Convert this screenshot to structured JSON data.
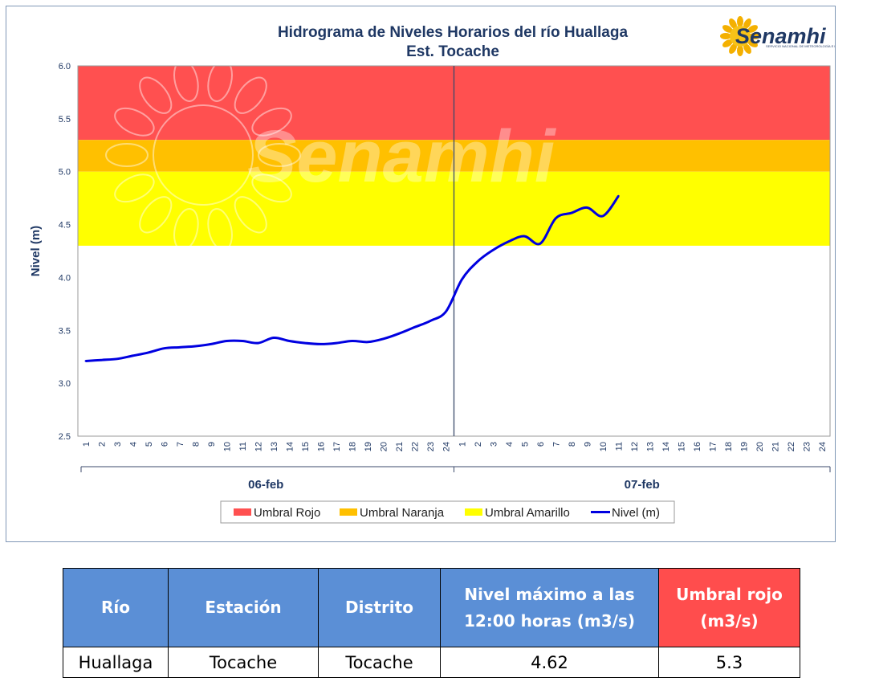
{
  "chart_data": {
    "type": "line",
    "title": "Hidrograma de Niveles Horarios del río Huallaga",
    "subtitle": "Est. Tocache",
    "ylabel": "Nivel (m)",
    "ylim": [
      2.5,
      6.0
    ],
    "yticks": [
      "2.5",
      "3.0",
      "3.5",
      "4.0",
      "4.5",
      "5.0",
      "5.5",
      "6.0"
    ],
    "x_tick_labels": [
      "1",
      "2",
      "3",
      "4",
      "5",
      "6",
      "7",
      "8",
      "9",
      "10",
      "11",
      "12",
      "13",
      "14",
      "15",
      "16",
      "17",
      "18",
      "19",
      "20",
      "21",
      "22",
      "23",
      "24",
      "1",
      "2",
      "3",
      "4",
      "5",
      "6",
      "7",
      "8",
      "9",
      "10",
      "11",
      "12",
      "13",
      "14",
      "15",
      "16",
      "17",
      "18",
      "19",
      "20",
      "21",
      "22",
      "23",
      "24"
    ],
    "day_labels": [
      "06-feb",
      "07-feb"
    ],
    "thresholds": [
      {
        "name": "Umbral Rojo",
        "from": 5.3,
        "to": 6.0,
        "color": "#ff5050"
      },
      {
        "name": "Umbral Naranja",
        "from": 5.0,
        "to": 5.3,
        "color": "#ffc000"
      },
      {
        "name": "Umbral Amarillo",
        "from": 4.3,
        "to": 5.0,
        "color": "#ffff00"
      }
    ],
    "series": [
      {
        "name": "Nivel (m)",
        "color": "#0000e0",
        "values": [
          3.21,
          3.22,
          3.23,
          3.26,
          3.29,
          3.33,
          3.34,
          3.35,
          3.37,
          3.4,
          3.4,
          3.38,
          3.43,
          3.4,
          3.38,
          3.37,
          3.38,
          3.4,
          3.39,
          3.42,
          3.47,
          3.53,
          3.59,
          3.68,
          3.98,
          4.15,
          4.26,
          4.34,
          4.39,
          4.32,
          4.56,
          4.61,
          4.66,
          4.58,
          4.77
        ]
      }
    ],
    "grid": false,
    "legend_position": "bottom"
  },
  "watermark": "Senamhi",
  "logo": {
    "name": "Senamhi",
    "subtitle": "SERVICIO NACIONAL DE METEOROLOGÍA E HIDROLOGÍA DEL PERÚ"
  },
  "table": {
    "headers": [
      "Río",
      "Estación",
      "Distrito",
      "Nivel máximo a las 12:00 horas (m3/s)",
      "Umbral rojo (m3/s)"
    ],
    "rows": [
      [
        "Huallaga",
        "Tocache",
        "Tocache",
        "4.62",
        "5.3"
      ]
    ]
  }
}
